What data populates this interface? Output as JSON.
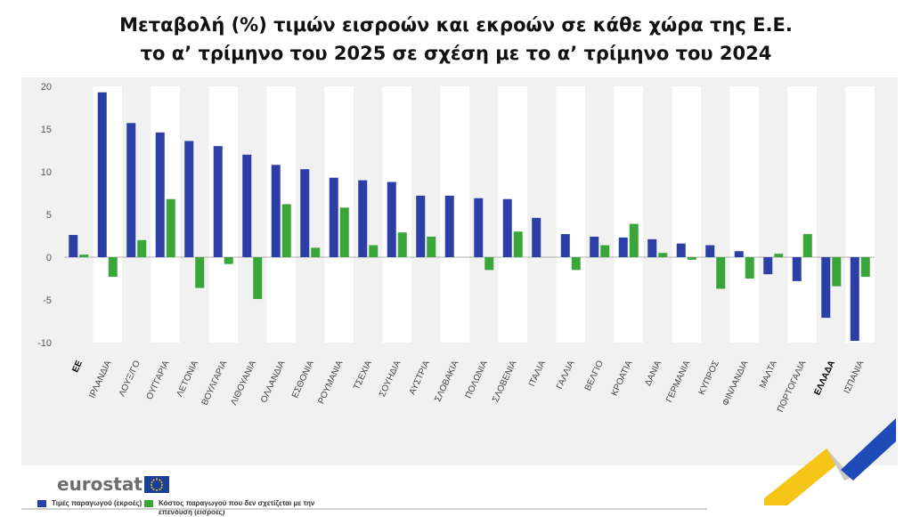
{
  "title": {
    "line1": "Μεταβολή (%) τιμών εισροών και εκροών σε κάθε χώρα της Ε.Ε.",
    "line2": "το α’ τρίμηνο του 2025 σε σχέση με το α’ τρίμηνο του 2024"
  },
  "legend": {
    "producer_prices": "Τιμές παραγωγού (εκροές)",
    "producer_costs": "Κόστος παραγωγού που δεν σχετίζεται με την επένδυση (εισροές)"
  },
  "source": "eurostat",
  "colors": {
    "blue": "#2b3fa6",
    "green": "#3aa63a",
    "band": "#ffffff",
    "panel": "#f1f1f1",
    "logo_yellow": "#f5c518",
    "logo_blue": "#1f4bb8"
  },
  "chart_data": {
    "type": "bar",
    "categories": [
      "ΕΕ",
      "ΙΡΛΑΝΔΙΑ",
      "ΛΟΥΞ/ΓΟ",
      "ΟΥΓΓΑΡΙΑ",
      "ΛΕΤΟΝΙΑ",
      "ΒΟΥΛΓΑΡΙΑ",
      "ΛΙΘΟΥΑΝΙΑ",
      "ΟΛΛΑΝΔΙΑ",
      "ΕΣΘΟΝΙΑ",
      "ΡΟΥΜΑΝΙΑ",
      "ΤΣΕΧΙΑ",
      "ΣΟΥΗΔΙΑ",
      "ΑΥΣΤΡΙΑ",
      "ΣΛΟΒΑΚΙΑ",
      "ΠΟΛΩΝΙΑ",
      "ΣΛΟΒΕΝΙΑ",
      "ΙΤΑΛΙΑ",
      "ΓΑΛΛΙΑ",
      "ΒΕΛΓΙΟ",
      "ΚΡΟΑΤΙΑ",
      "ΔΑΝΙΑ",
      "ΓΕΡΜΑΝΙΑ",
      "ΚΥΠΡΟΣ",
      "ΦΙΝΛΑΝΔΙΑ",
      "ΜΑΛΤΑ",
      "ΠΟΡΤΟΓΑΛΙΑ",
      "ΕΛΛΑΔΑ",
      "ΙΣΠΑΝΙΑ"
    ],
    "bold_categories": [
      "ΕΕ",
      "ΕΛΛΑΔΑ"
    ],
    "series": [
      {
        "name": "Τιμές παραγωγού (εκροές)",
        "color": "#2b3fa6",
        "values": [
          2.6,
          19.3,
          15.7,
          14.6,
          13.6,
          13.0,
          12.0,
          10.8,
          10.3,
          9.3,
          9.0,
          8.8,
          7.2,
          7.2,
          6.9,
          6.8,
          4.6,
          2.7,
          2.4,
          2.3,
          2.1,
          1.6,
          1.4,
          0.7,
          -2.0,
          -2.8,
          -7.1,
          -9.8
        ]
      },
      {
        "name": "Κόστος παραγωγού που δεν σχετίζεται με την επένδυση (εισροές)",
        "color": "#3aa63a",
        "values": [
          0.3,
          -2.3,
          2.0,
          6.8,
          -3.6,
          -0.8,
          -4.9,
          6.2,
          1.1,
          5.8,
          1.4,
          2.9,
          2.4,
          null,
          -1.5,
          3.0,
          null,
          -1.5,
          1.4,
          3.9,
          0.5,
          -0.3,
          -3.7,
          -2.5,
          0.4,
          2.7,
          -3.4,
          -2.3
        ]
      }
    ],
    "ylim": [
      -10,
      20
    ],
    "yticks": [
      20,
      15,
      10,
      5,
      0,
      -5,
      -10
    ],
    "grid": false,
    "legend_position": "bottom-left"
  }
}
